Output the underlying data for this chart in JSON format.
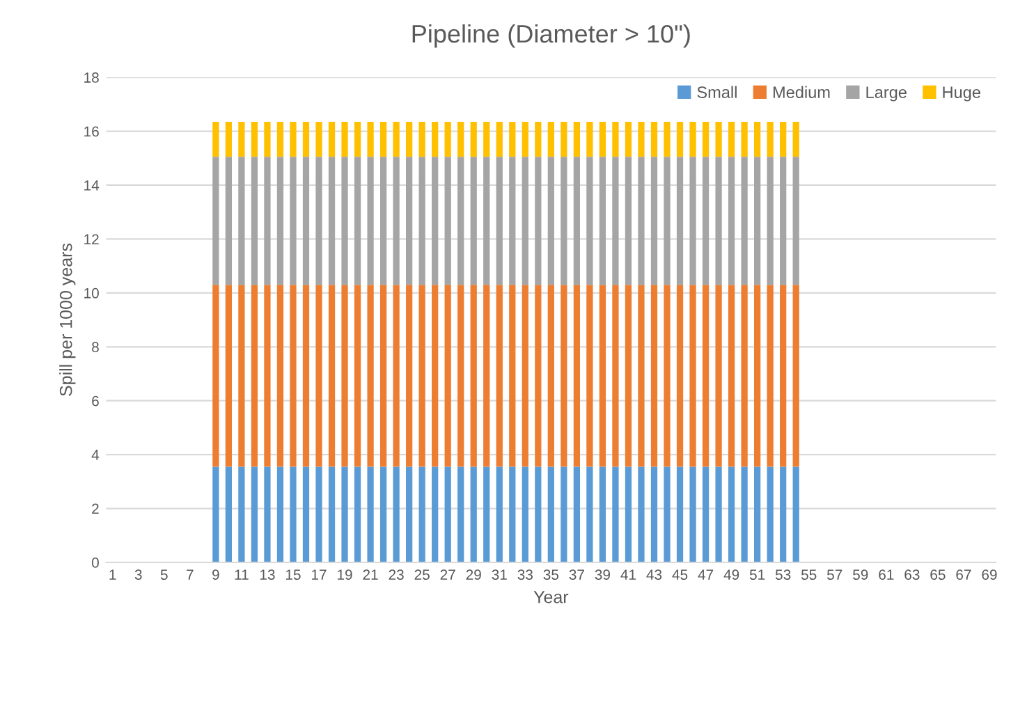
{
  "chart_data": {
    "type": "bar",
    "title": "Pipeline (Diameter > 10\")",
    "xlabel": "Year",
    "ylabel": "Spill per 1000 years",
    "categories": [
      "1",
      null,
      "3",
      null,
      "5",
      null,
      "7",
      null,
      "9",
      null,
      "11",
      null,
      "13",
      null,
      "15",
      null,
      "17",
      null,
      "19",
      null,
      "21",
      null,
      "23",
      null,
      "25",
      null,
      "27",
      null,
      "29",
      null,
      "31",
      null,
      "33",
      null,
      "35",
      null,
      "37",
      null,
      "39",
      null,
      "41",
      null,
      "43",
      null,
      "45",
      null,
      "47",
      null,
      "49",
      null,
      "51",
      null,
      "53",
      null,
      "55",
      null,
      "57",
      null,
      "59",
      null,
      "61",
      null,
      "63",
      null,
      "65",
      null,
      "67",
      null,
      "69"
    ],
    "stacked": true,
    "series": [
      {
        "name": "Small",
        "color": "#5b9bd5",
        "values": [
          null,
          null,
          null,
          null,
          null,
          null,
          null,
          null,
          3.55,
          3.55,
          3.55,
          3.55,
          3.55,
          3.55,
          3.55,
          3.55,
          3.55,
          3.55,
          3.55,
          3.55,
          3.55,
          3.55,
          3.55,
          3.55,
          3.55,
          3.55,
          3.55,
          3.55,
          3.55,
          3.55,
          3.55,
          3.55,
          3.55,
          3.55,
          3.55,
          3.55,
          3.55,
          3.55,
          3.55,
          3.55,
          3.55,
          3.55,
          3.55,
          3.55,
          3.55,
          3.55,
          3.55,
          3.55,
          3.55,
          3.55,
          3.55,
          3.55,
          3.55,
          3.55,
          null,
          null,
          null,
          null,
          null,
          null,
          null,
          null,
          null,
          null,
          null,
          null,
          null,
          null,
          null
        ]
      },
      {
        "name": "Medium",
        "color": "#ed7d31",
        "values": [
          null,
          null,
          null,
          null,
          null,
          null,
          null,
          null,
          6.75,
          6.75,
          6.75,
          6.75,
          6.75,
          6.75,
          6.75,
          6.75,
          6.75,
          6.75,
          6.75,
          6.75,
          6.75,
          6.75,
          6.75,
          6.75,
          6.75,
          6.75,
          6.75,
          6.75,
          6.75,
          6.75,
          6.75,
          6.75,
          6.75,
          6.75,
          6.75,
          6.75,
          6.75,
          6.75,
          6.75,
          6.75,
          6.75,
          6.75,
          6.75,
          6.75,
          6.75,
          6.75,
          6.75,
          6.75,
          6.75,
          6.75,
          6.75,
          6.75,
          6.75,
          6.75,
          null,
          null,
          null,
          null,
          null,
          null,
          null,
          null,
          null,
          null,
          null,
          null,
          null,
          null,
          null
        ]
      },
      {
        "name": "Large",
        "color": "#a5a5a5",
        "values": [
          null,
          null,
          null,
          null,
          null,
          null,
          null,
          null,
          4.75,
          4.75,
          4.75,
          4.75,
          4.75,
          4.75,
          4.75,
          4.75,
          4.75,
          4.75,
          4.75,
          4.75,
          4.75,
          4.75,
          4.75,
          4.75,
          4.75,
          4.75,
          4.75,
          4.75,
          4.75,
          4.75,
          4.75,
          4.75,
          4.75,
          4.75,
          4.75,
          4.75,
          4.75,
          4.75,
          4.75,
          4.75,
          4.75,
          4.75,
          4.75,
          4.75,
          4.75,
          4.75,
          4.75,
          4.75,
          4.75,
          4.75,
          4.75,
          4.75,
          4.75,
          4.75,
          null,
          null,
          null,
          null,
          null,
          null,
          null,
          null,
          null,
          null,
          null,
          null,
          null,
          null,
          null
        ]
      },
      {
        "name": "Huge",
        "color": "#ffc000",
        "values": [
          null,
          null,
          null,
          null,
          null,
          null,
          null,
          null,
          1.3,
          1.3,
          1.3,
          1.3,
          1.3,
          1.3,
          1.3,
          1.3,
          1.3,
          1.3,
          1.3,
          1.3,
          1.3,
          1.3,
          1.3,
          1.3,
          1.3,
          1.3,
          1.3,
          1.3,
          1.3,
          1.3,
          1.3,
          1.3,
          1.3,
          1.3,
          1.3,
          1.3,
          1.3,
          1.3,
          1.3,
          1.3,
          1.3,
          1.3,
          1.3,
          1.3,
          1.3,
          1.3,
          1.3,
          1.3,
          1.3,
          1.3,
          1.3,
          1.3,
          1.3,
          1.3,
          null,
          null,
          null,
          null,
          null,
          null,
          null,
          null,
          null,
          null,
          null,
          null,
          null,
          null,
          null
        ]
      }
    ],
    "ylim": [
      0,
      18
    ],
    "yticks": [
      0,
      2,
      4,
      6,
      8,
      10,
      12,
      14,
      16,
      18
    ],
    "grid": "y",
    "legend": "top right"
  }
}
